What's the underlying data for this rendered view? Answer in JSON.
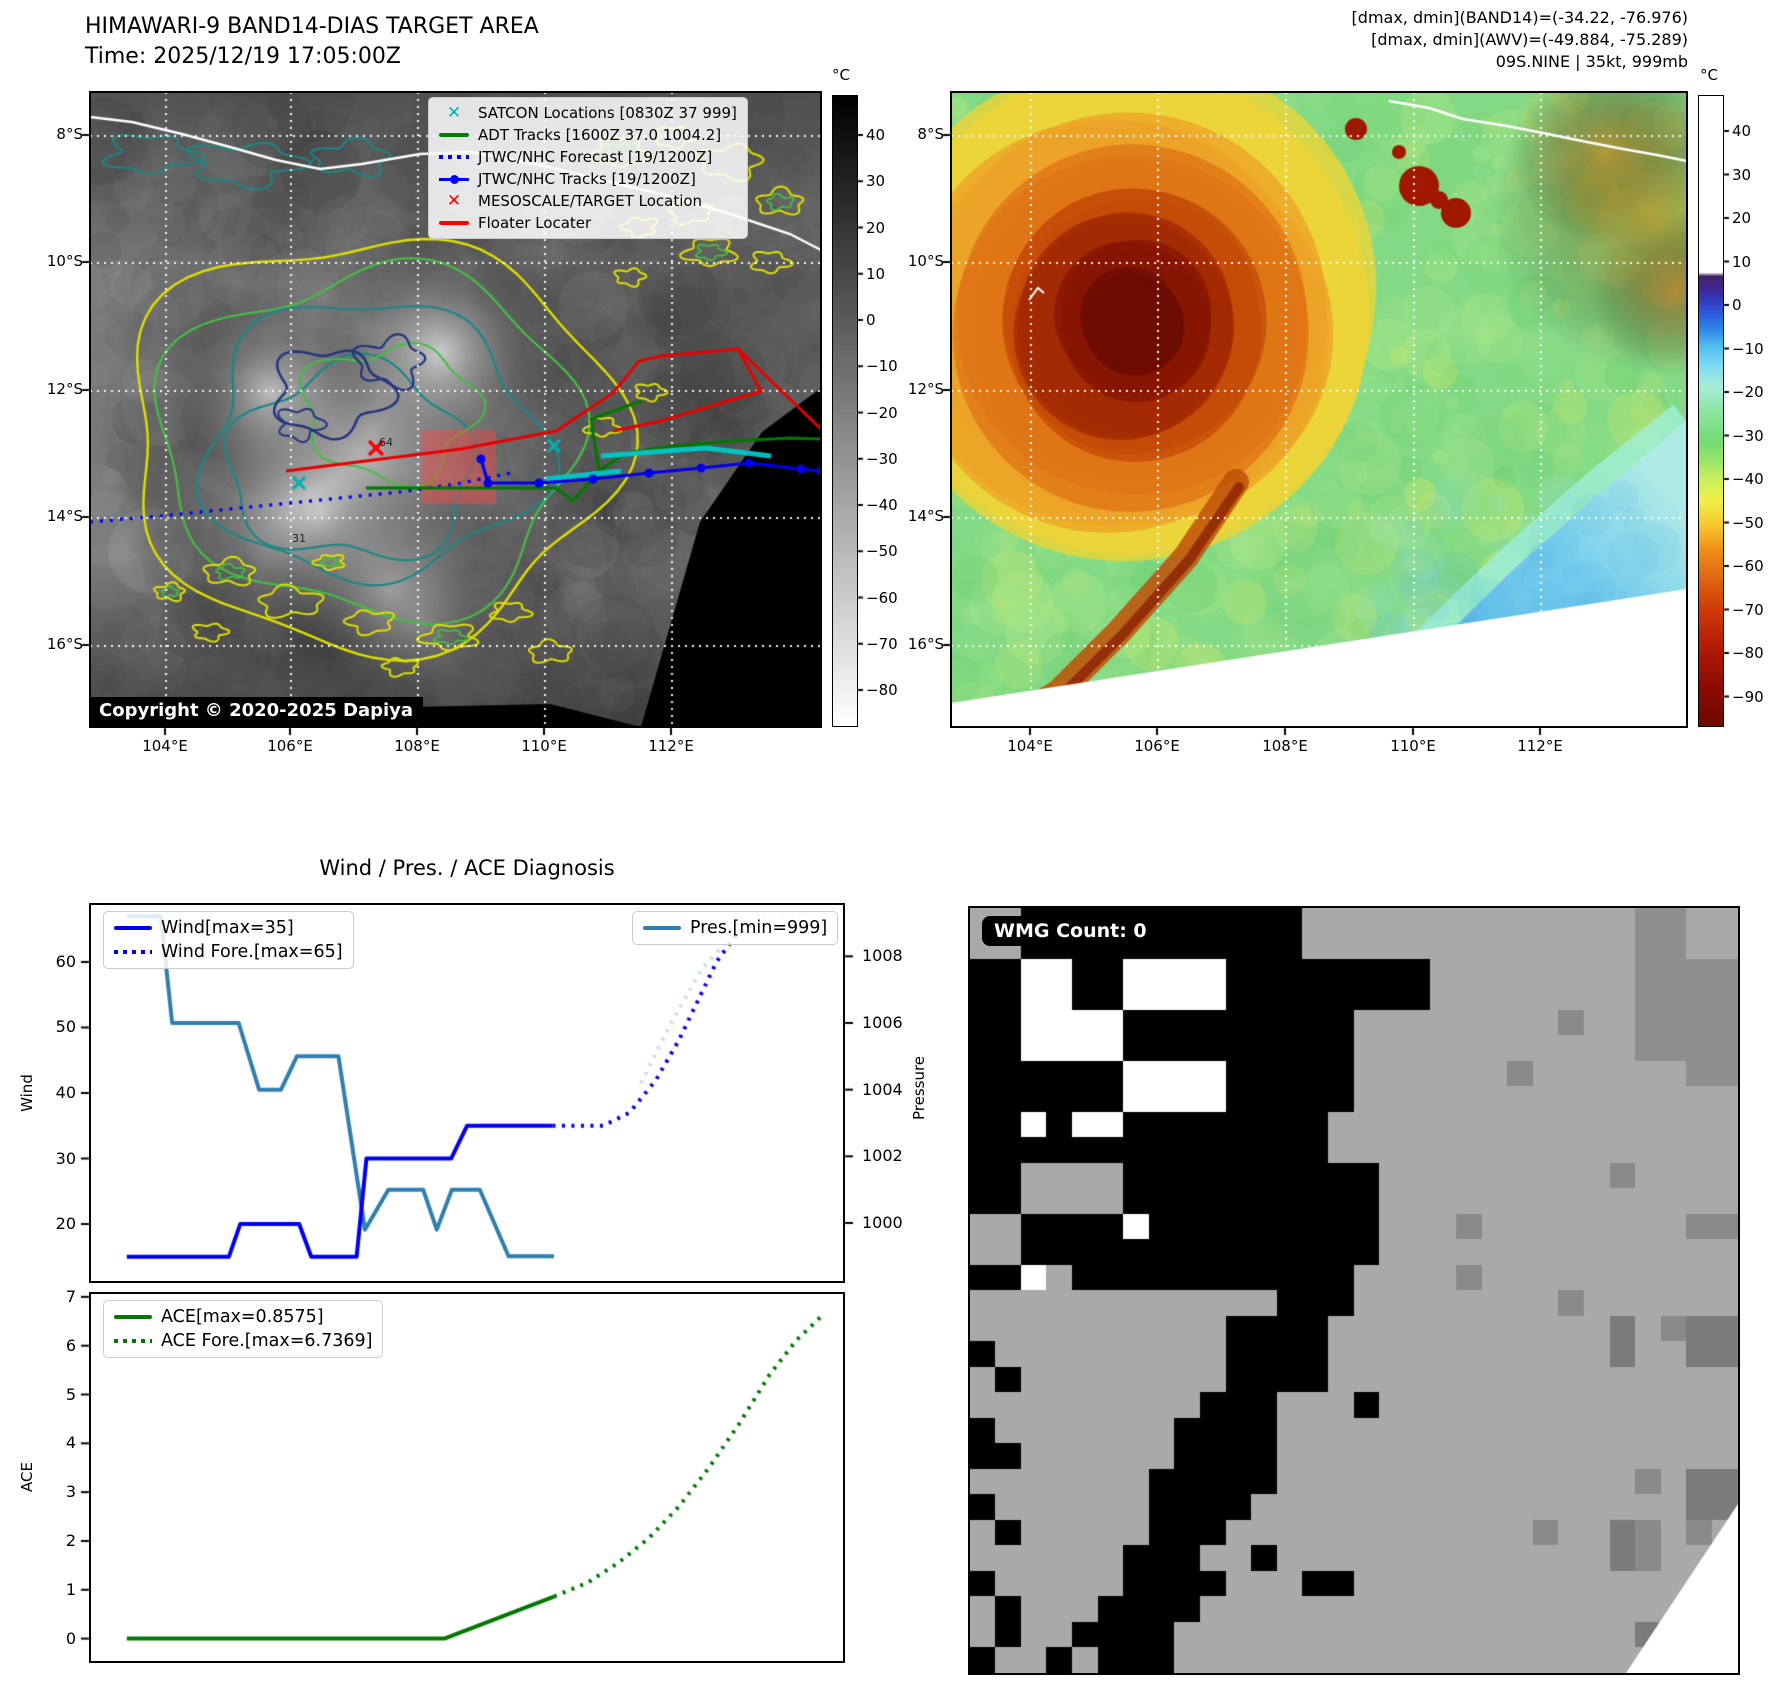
{
  "header": {
    "title": "HIMAWARI-9 BAND14-DIAS TARGET AREA",
    "time_line": "Time: 2025/12/19 17:05:00Z",
    "info_line1": "[dmax, dmin](BAND14)=(-34.22, -76.976)",
    "info_line2": "[dmax, dmin](AWV)=(-49.884, -75.289)",
    "info_line3": "09S.NINE | 35kt, 999mb"
  },
  "band14_panel": {
    "lat_ticks": [
      "8°S",
      "10°S",
      "12°S",
      "14°S",
      "16°S"
    ],
    "lon_ticks": [
      "104°E",
      "106°E",
      "108°E",
      "110°E",
      "112°E"
    ],
    "colorbar_unit": "°C",
    "colorbar_ticks": [
      "40",
      "30",
      "20",
      "10",
      "0",
      "−10",
      "−20",
      "−30",
      "−40",
      "−50",
      "−60",
      "−70",
      "−80"
    ],
    "legend": [
      {
        "label": "SATCON Locations [0830Z 37 999]",
        "marker": "x",
        "color": "#00b2b2"
      },
      {
        "label": "ADT Tracks [1600Z 37.0 1004.2]",
        "marker": "line",
        "color": "#008000"
      },
      {
        "label": "JTWC/NHC Forecast [19/1200Z]",
        "marker": "dotted",
        "color": "#0000ff"
      },
      {
        "label": "JTWC/NHC Tracks [19/1200Z]",
        "marker": "line-dot",
        "color": "#0000ff"
      },
      {
        "label": "MESOSCALE/TARGET Location",
        "marker": "x",
        "color": "#ff0000"
      },
      {
        "label": "Floater Locater",
        "marker": "line",
        "color": "#ff0000"
      }
    ],
    "copyright": "Copyright © 2020-2025 Dapiya",
    "annotations": [
      {
        "text": "64"
      },
      {
        "text": "31"
      }
    ]
  },
  "awv_panel": {
    "lat_ticks": [
      "8°S",
      "10°S",
      "12°S",
      "14°S",
      "16°S"
    ],
    "lon_ticks": [
      "104°E",
      "106°E",
      "108°E",
      "110°E",
      "112°E"
    ],
    "colorbar_unit": "°C",
    "colorbar_ticks": [
      "40",
      "30",
      "20",
      "10",
      "0",
      "−10",
      "−20",
      "−30",
      "−40",
      "−50",
      "−60",
      "−70",
      "−80",
      "−90"
    ]
  },
  "wmg_panel": {
    "count_label": "WMG Count: 0"
  },
  "chart_data": [
    {
      "type": "line",
      "subplot": "wind_pressure",
      "title": "Wind / Pres. / ACE Diagnosis",
      "ylabel": "Wind",
      "y2label": "Pressure",
      "ylim": [
        11,
        69
      ],
      "y_ticks": [
        20,
        30,
        40,
        50,
        60
      ],
      "y2lim": [
        998.2,
        1009.6
      ],
      "y2_ticks": [
        1000,
        1002,
        1004,
        1006,
        1008
      ],
      "xlim": [
        0,
        100
      ],
      "grid": false,
      "series": [
        {
          "name": "Wind[max=35]",
          "axis": "y",
          "style": "solid",
          "color": "#0000ee",
          "points": [
            [
              5,
              15
            ],
            [
              18.5,
              15
            ],
            [
              20,
              20
            ],
            [
              27.8,
              20
            ],
            [
              29.4,
              15
            ],
            [
              35.4,
              15
            ],
            [
              36.7,
              30
            ],
            [
              47.9,
              30
            ],
            [
              50,
              35
            ],
            [
              61.3,
              35
            ]
          ]
        },
        {
          "name": "Wind Fore.[max=65]",
          "axis": "y",
          "style": "dotted",
          "color": "#0000ee",
          "fade_from": 87.5,
          "points": [
            [
              61.3,
              35
            ],
            [
              68,
              35
            ],
            [
              71.5,
              37
            ],
            [
              75,
              42
            ],
            [
              78,
              48
            ],
            [
              80.5,
              54
            ],
            [
              83,
              60
            ],
            [
              85.5,
              64
            ],
            [
              87.5,
              65.5
            ],
            [
              97,
              65.5
            ]
          ]
        },
        {
          "name": "Pres.[min=999]",
          "axis": "y2",
          "style": "solid",
          "color": "#2e7fb0",
          "points": [
            [
              5,
              1009.2
            ],
            [
              9.5,
              1009.2
            ],
            [
              11,
              1006
            ],
            [
              19.8,
              1006
            ],
            [
              22.5,
              1004
            ],
            [
              25.4,
              1004
            ],
            [
              27.5,
              1005
            ],
            [
              33,
              1005
            ],
            [
              36.5,
              999.8
            ],
            [
              39.6,
              1001
            ],
            [
              44.2,
              1001
            ],
            [
              46,
              999.8
            ],
            [
              48,
              1001
            ],
            [
              51.7,
              1001
            ],
            [
              55.5,
              999
            ],
            [
              61.5,
              999
            ]
          ]
        },
        {
          "name": "Pres. Fore.",
          "axis": "y2",
          "style": "dotted",
          "color": "#98a8ee",
          "opacity": 0.45,
          "points": [
            [
              73,
              1004.2
            ],
            [
              77,
              1006
            ],
            [
              81,
              1007.6
            ],
            [
              85,
              1008.6
            ],
            [
              89,
              1009.1
            ],
            [
              93,
              1009.3
            ],
            [
              97,
              1009.3
            ]
          ]
        }
      ]
    },
    {
      "type": "line",
      "subplot": "ace",
      "ylabel": "ACE",
      "ylim": [
        -0.5,
        7.1
      ],
      "y_ticks": [
        0,
        1,
        2,
        3,
        4,
        5,
        6,
        7
      ],
      "xlim": [
        0,
        100
      ],
      "grid": false,
      "series": [
        {
          "name": "ACE[max=0.8575]",
          "style": "solid",
          "color": "#007800",
          "points": [
            [
              5,
              0
            ],
            [
              47,
              0
            ],
            [
              61.5,
              0.86
            ]
          ]
        },
        {
          "name": "ACE Fore.[max=6.7369]",
          "style": "dotted",
          "color": "#007800",
          "points": [
            [
              61.5,
              0.86
            ],
            [
              66,
              1.15
            ],
            [
              70,
              1.55
            ],
            [
              74,
              2.05
            ],
            [
              78,
              2.7
            ],
            [
              82,
              3.5
            ],
            [
              86,
              4.4
            ],
            [
              90,
              5.4
            ],
            [
              93.5,
              6.1
            ],
            [
              97,
              6.62
            ]
          ]
        }
      ]
    }
  ]
}
